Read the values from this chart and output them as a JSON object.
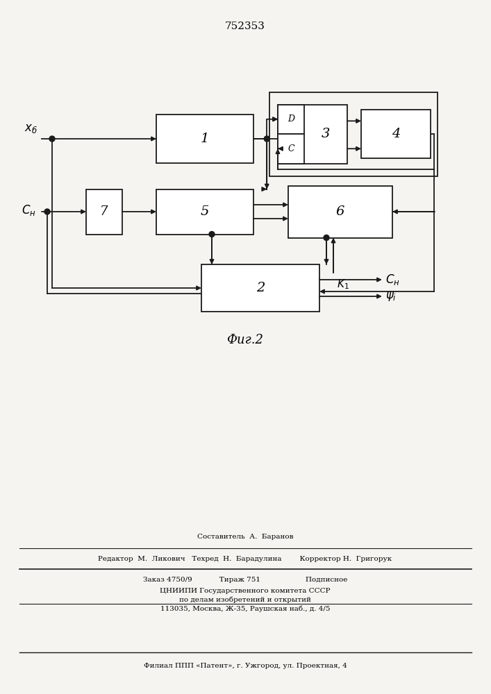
{
  "title": "752353",
  "background_color": "#f5f4f0",
  "line_color": "#1a1a1a",
  "box_color": "#ffffff",
  "footer_lines": [
    "Составитель  А.  Баранов",
    "Редактор  М.  Ликович   Техред  Н.  Барадулина        Корректор Н.  Григорук",
    "Заказ 4750/9            Тираж 751                    Подписное",
    "ЦНИИПИ Государственного комитета СССР",
    "по делам изобретений и открытий",
    "113035, Москва, Ж-35, Раушская наб., д. 4/5",
    "Филиал ППП «Патент», г. Ужгород, ул. Проектная, 4"
  ]
}
